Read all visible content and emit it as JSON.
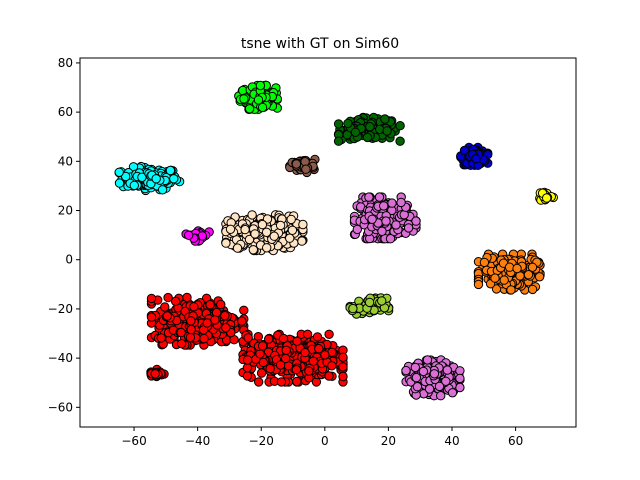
{
  "chart_data": {
    "type": "scatter",
    "title": "tsne with GT on Sim60",
    "xlabel": "",
    "ylabel": "",
    "xlim": [
      -77,
      79
    ],
    "ylim": [
      -68,
      82
    ],
    "xticks": [
      -60,
      -40,
      -20,
      0,
      20,
      40,
      60
    ],
    "yticks": [
      -60,
      -40,
      -20,
      0,
      20,
      40,
      60,
      80
    ],
    "xtick_labels": [
      "−60",
      "−40",
      "−20",
      "0",
      "20",
      "40",
      "60"
    ],
    "ytick_labels": [
      "−60",
      "−40",
      "−20",
      "0",
      "20",
      "40",
      "60",
      "80"
    ],
    "grid": false,
    "legend": "none",
    "marker_edge_color": "#000000",
    "clusters": [
      {
        "color": "#00ffff",
        "center": [
          -55,
          33
        ],
        "spread": [
          8,
          4
        ],
        "approx_points": 180
      },
      {
        "color": "#00ff00",
        "center": [
          -21,
          66
        ],
        "spread": [
          5,
          4
        ],
        "approx_points": 130
      },
      {
        "color": "#006400",
        "center": [
          14,
          53
        ],
        "spread": [
          8,
          4
        ],
        "approx_points": 170
      },
      {
        "color": "#0000cd",
        "center": [
          47,
          42
        ],
        "spread": [
          3.5,
          3
        ],
        "approx_points": 90
      },
      {
        "color": "#8b5a4a",
        "center": [
          -7,
          38
        ],
        "spread": [
          3.5,
          2.5
        ],
        "approx_points": 60
      },
      {
        "color": "#ffff00",
        "center": [
          69.5,
          26
        ],
        "spread": [
          2,
          2
        ],
        "approx_points": 25
      },
      {
        "color": "#ffe4c4",
        "center": [
          -19,
          11
        ],
        "spread": [
          10,
          6
        ],
        "approx_points": 320
      },
      {
        "color": "#ff00ff",
        "center": [
          -40,
          10
        ],
        "spread": [
          3,
          2
        ],
        "approx_points": 30
      },
      {
        "color": "#da70d6",
        "center": [
          19,
          17
        ],
        "spread": [
          8,
          7
        ],
        "approx_points": 260
      },
      {
        "color": "#ff7f0e",
        "center": [
          58,
          -5
        ],
        "spread": [
          8,
          6
        ],
        "approx_points": 230
      },
      {
        "color": "#9acd32",
        "center": [
          14,
          -19
        ],
        "spread": [
          5,
          3
        ],
        "approx_points": 70
      },
      {
        "color": "#ff0000",
        "center": [
          -40,
          -25
        ],
        "spread": [
          12,
          8
        ],
        "approx_points": 380
      },
      {
        "color": "#ff0000",
        "center": [
          -10,
          -40
        ],
        "spread": [
          13,
          8
        ],
        "approx_points": 420
      },
      {
        "color": "#ff0000",
        "center": [
          -53,
          -46
        ],
        "spread": [
          2,
          2
        ],
        "approx_points": 25
      },
      {
        "color": "#da70d6",
        "center": [
          34,
          -48
        ],
        "spread": [
          7,
          6
        ],
        "approx_points": 200
      }
    ]
  }
}
